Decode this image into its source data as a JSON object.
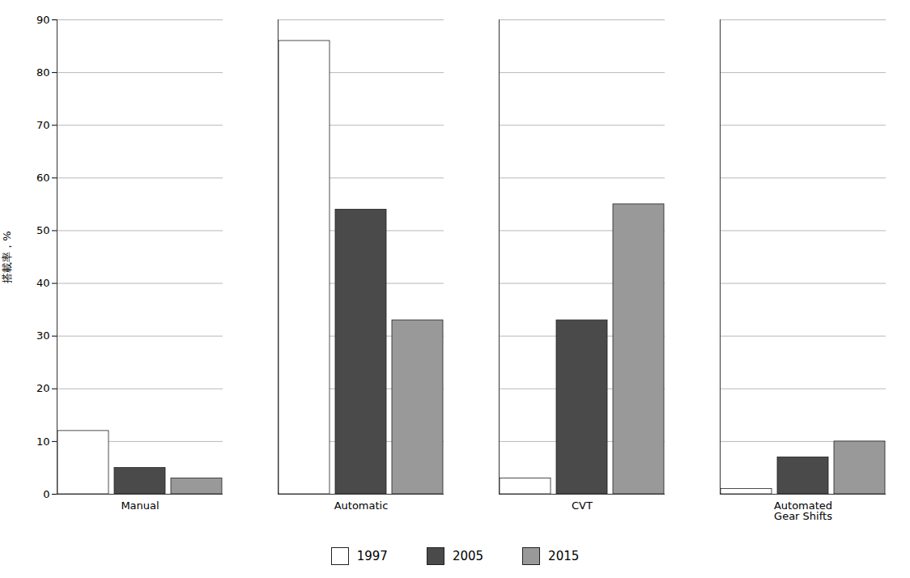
{
  "chart_data": {
    "type": "bar",
    "categories": [
      "Manual",
      "Automatic",
      "CVT",
      "Automated\nGear Shifts"
    ],
    "series": [
      {
        "name": "1997",
        "color": "#ffffff",
        "values": [
          12,
          86,
          3,
          1
        ]
      },
      {
        "name": "2005",
        "color": "#4a4a4a",
        "values": [
          5,
          54,
          33,
          7
        ]
      },
      {
        "name": "2015",
        "color": "#999999",
        "values": [
          3,
          33,
          55,
          10
        ]
      }
    ],
    "ylabel": "搭載率，%",
    "ylim": [
      0,
      90
    ],
    "yticks": [
      0,
      10,
      20,
      30,
      40,
      50,
      60,
      70,
      80,
      90
    ],
    "grid": true,
    "legend": "bottom"
  }
}
